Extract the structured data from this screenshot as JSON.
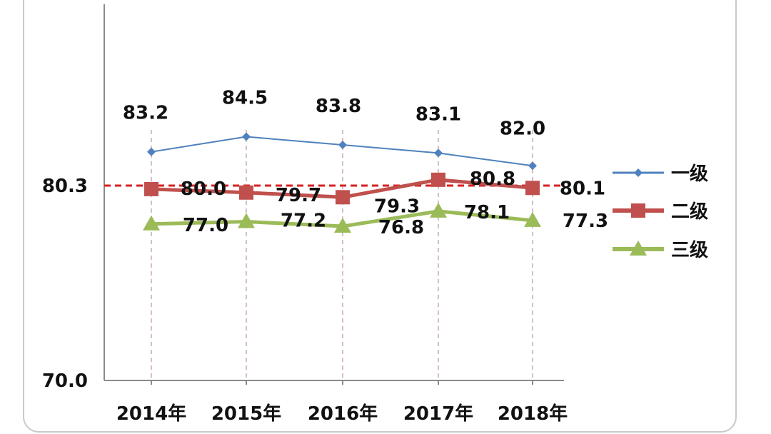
{
  "chart_data": {
    "type": "line",
    "title": "",
    "xlabel": "",
    "ylabel": "",
    "categories": [
      "2014年",
      "2015年",
      "2016年",
      "2017年",
      "2018年"
    ],
    "y_axis_ticks": [
      "70.0",
      "80.3"
    ],
    "reference_line": {
      "value": 80.3,
      "color": "#d62222",
      "style": "dashed"
    },
    "grid": false,
    "legend_position": "right",
    "series": [
      {
        "name": "一级",
        "values": [
          83.2,
          84.5,
          83.8,
          83.1,
          82.0
        ],
        "labels": [
          "83.2",
          "84.5",
          "83.8",
          "83.1",
          "82.0"
        ],
        "color": "#4f81bd",
        "marker": "diamond"
      },
      {
        "name": "二级",
        "values": [
          80.0,
          79.7,
          79.3,
          80.8,
          80.1
        ],
        "labels": [
          "80.0",
          "79.7",
          "79.3",
          "80.8",
          "80.1"
        ],
        "color": "#c0504d",
        "marker": "square"
      },
      {
        "name": "三级",
        "values": [
          77.0,
          77.2,
          76.8,
          78.1,
          77.3
        ],
        "labels": [
          "77.0",
          "77.2",
          "76.8",
          "78.1",
          "77.3"
        ],
        "color": "#9bbb59",
        "marker": "triangle"
      }
    ]
  }
}
